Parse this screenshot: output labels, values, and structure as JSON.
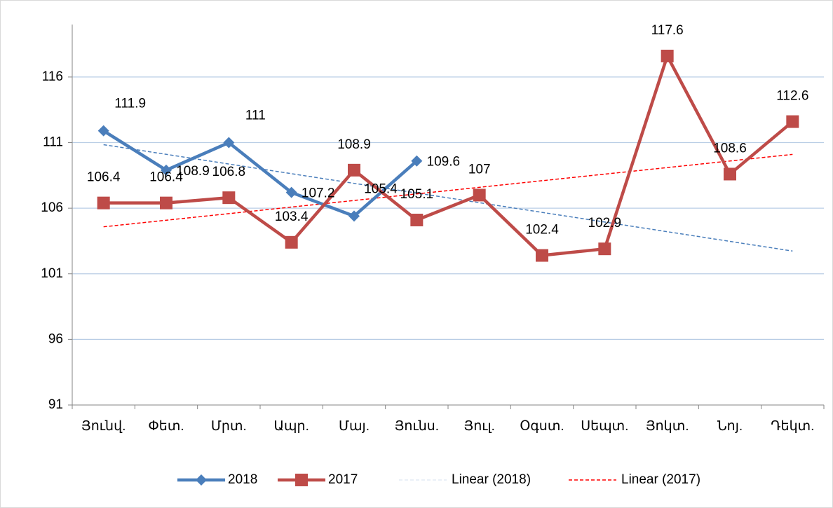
{
  "chart_data": {
    "type": "line",
    "categories": [
      "Յունվ.",
      "Փետ.",
      "Մրտ.",
      "Ապր.",
      "Մայ.",
      "Յունս.",
      "Յուլ.",
      "Օգստ.",
      "Սեպտ.",
      "Յոկտ.",
      "Նոյ.",
      "Դեկտ."
    ],
    "series": [
      {
        "name": "2018",
        "color": "#4a7ebb",
        "marker": "diamond",
        "values": [
          111.9,
          108.9,
          111,
          107.2,
          105.4,
          109.6,
          null,
          null,
          null,
          null,
          null,
          null
        ]
      },
      {
        "name": "2017",
        "color": "#be4b48",
        "marker": "square",
        "values": [
          106.4,
          106.4,
          106.8,
          103.4,
          108.9,
          105.1,
          107,
          102.4,
          102.9,
          117.6,
          108.6,
          112.6
        ]
      }
    ],
    "trendlines": [
      {
        "name": "Linear (2018)",
        "series": 0,
        "color": "#4a7ebb"
      },
      {
        "name": "Linear (2017)",
        "series": 1,
        "color": "#ff0000"
      }
    ],
    "ylim": [
      91,
      120
    ],
    "yticks": [
      91,
      96,
      101,
      106,
      111,
      116
    ],
    "grid": true
  }
}
